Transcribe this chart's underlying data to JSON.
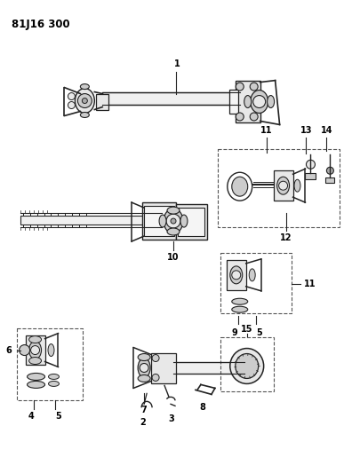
{
  "title": "81J16 300",
  "bg_color": "#ffffff",
  "line_color": "#222222",
  "fill_light": "#e8e8e8",
  "fill_mid": "#cccccc",
  "fill_dark": "#aaaaaa"
}
